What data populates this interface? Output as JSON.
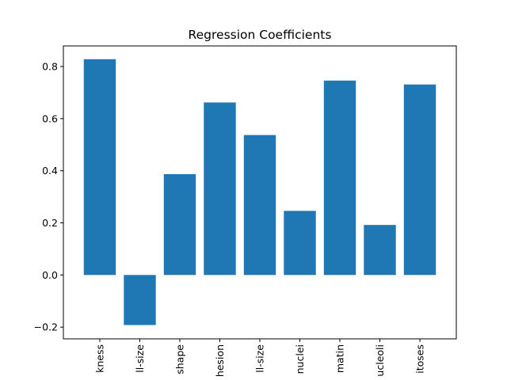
{
  "chart_data": {
    "type": "bar",
    "title": "Regression Coefficients",
    "xlabel": "",
    "ylabel": "",
    "categories": [
      "kness",
      "ll-size",
      "shape",
      "hesion",
      "ll-size",
      "nuclei",
      "matin",
      "ucleoli",
      "itoses"
    ],
    "values": [
      0.828,
      -0.192,
      0.387,
      0.662,
      0.537,
      0.246,
      0.746,
      0.192,
      0.731
    ],
    "ylim": [
      -0.245,
      0.879
    ],
    "yticks": [
      -0.2,
      0.0,
      0.2,
      0.4,
      0.6,
      0.8
    ],
    "ytick_labels": [
      "−0.2",
      "0.0",
      "0.2",
      "0.4",
      "0.6",
      "0.8"
    ],
    "grid": false,
    "colors": {
      "bar": "#1f77b4"
    }
  }
}
